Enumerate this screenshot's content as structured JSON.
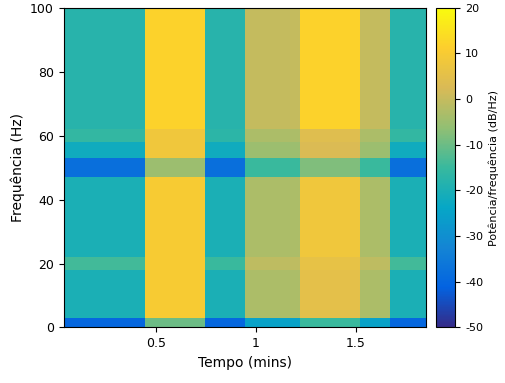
{
  "chart_data": {
    "type": "heatmap",
    "xlabel": "Tempo (mins)",
    "ylabel": "Frequência (Hz)",
    "xlim": [
      0.04,
      1.85
    ],
    "xticks": [
      0.5,
      1,
      1.5
    ],
    "ylim": [
      0,
      100
    ],
    "yticks": [
      0,
      20,
      40,
      60,
      80,
      100
    ],
    "x_edges": [
      0.04,
      0.445,
      0.745,
      0.945,
      1.22,
      1.52,
      1.67,
      1.85
    ],
    "y_edges": [
      0,
      3,
      18,
      22,
      47,
      53,
      58,
      62,
      100
    ],
    "cells": [
      [
        -40,
        -10,
        -40,
        -25,
        -15,
        -25,
        -40
      ],
      [
        -20,
        10,
        -20,
        -3,
        5,
        -3,
        -20
      ],
      [
        -14,
        10,
        -15,
        -1,
        6,
        -1,
        -14
      ],
      [
        -20,
        10,
        -20,
        -3,
        8,
        -3,
        -20
      ],
      [
        -38,
        -5,
        -38,
        -15,
        -8,
        -15,
        -38
      ],
      [
        -22,
        8,
        -22,
        -5,
        3,
        -5,
        -22
      ],
      [
        -16,
        8,
        -17,
        -3,
        4,
        -3,
        -16
      ],
      [
        -18,
        12,
        -18,
        0,
        12,
        0,
        -18
      ]
    ],
    "colorbar": {
      "label": "Potência/frequência (dB/Hz)",
      "lim": [
        -50,
        20
      ],
      "ticks": [
        -50,
        -40,
        -30,
        -20,
        -10,
        0,
        10,
        20
      ]
    }
  }
}
